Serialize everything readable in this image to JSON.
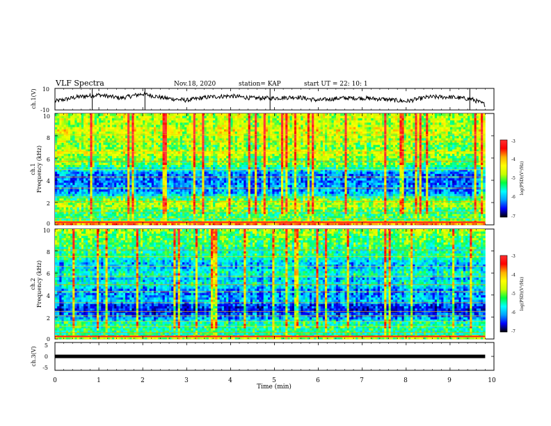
{
  "header": {
    "title": "VLF Spectra",
    "date": "Nov.18, 2020",
    "station": "station= KAP",
    "start": "start  UT =   22: 10: 1"
  },
  "colorbar": {
    "label": "log(PSD)(V²/Hz)",
    "ticks": [
      "-3",
      "-4",
      "-5",
      "-6",
      "-7"
    ],
    "colors": [
      "#ff3030",
      "#ff0000",
      "#ffb000",
      "#ffff00",
      "#c8ff00",
      "#00ff40",
      "#00ffff",
      "#00a0ff",
      "#0000ff",
      "#000000"
    ]
  },
  "chart_data": [
    {
      "type": "line",
      "name": "ch.1(V)",
      "ylabel": "ch.1(V)",
      "ylim": [
        -10,
        10
      ],
      "y_ticks": [
        "10",
        "-10"
      ],
      "x": [
        0,
        0.5,
        1,
        1.5,
        2,
        2.5,
        3,
        3.5,
        4,
        4.5,
        5,
        5.5,
        6,
        6.5,
        7,
        7.5,
        8,
        8.5,
        9,
        9.5,
        9.8
      ],
      "y": [
        -2,
        2,
        4,
        1,
        5,
        1,
        -1,
        2,
        3,
        1,
        1,
        2,
        -1,
        1,
        1,
        0,
        -2,
        2,
        2,
        0,
        -5
      ]
    },
    {
      "type": "heatmap",
      "name": "ch.1",
      "ylabel": "ch.1",
      "ylabel2": "Frequency (kHz)",
      "ylim": [
        0,
        10
      ],
      "y_ticks": [
        "0",
        "2",
        "4",
        "6",
        "8",
        "10"
      ],
      "colorbar_range": [
        -7,
        -3
      ],
      "band_profile_khz": [
        0,
        0.5,
        1,
        1.5,
        2,
        2.5,
        3,
        3.5,
        4,
        4.5,
        5,
        5.5,
        6,
        6.5,
        7,
        7.5,
        8,
        8.5,
        9,
        9.5,
        10
      ],
      "band_profile_logpsd": [
        -3.5,
        -5.0,
        -5.0,
        -4.8,
        -4.5,
        -5.2,
        -5.8,
        -5.8,
        -5.9,
        -5.9,
        -5.4,
        -4.8,
        -4.8,
        -4.4,
        -4.8,
        -4.6,
        -4.6,
        -4.3,
        -4.6,
        -4.5,
        -4.5
      ]
    },
    {
      "type": "heatmap",
      "name": "ch.2",
      "ylabel": "ch.2",
      "ylabel2": "Frequency (kHz)",
      "ylim": [
        0,
        10
      ],
      "y_ticks": [
        "0",
        "2",
        "4",
        "6",
        "8",
        "10"
      ],
      "colorbar_range": [
        -7,
        -3
      ],
      "band_profile_khz": [
        0,
        0.5,
        1,
        1.5,
        2,
        2.5,
        3,
        3.5,
        4,
        4.5,
        5,
        5.5,
        6,
        6.5,
        7,
        7.5,
        8,
        8.5,
        9,
        9.5,
        10
      ],
      "band_profile_logpsd": [
        -4.5,
        -5.2,
        -5.1,
        -5.2,
        -5.8,
        -6.2,
        -6.2,
        -5.6,
        -5.8,
        -5.8,
        -5.3,
        -5.6,
        -5.2,
        -5.6,
        -5.6,
        -5.1,
        -5.2,
        -5.0,
        -4.9,
        -4.8,
        -4.6
      ]
    },
    {
      "type": "line",
      "name": "ch.3(V)",
      "ylabel": "ch.3(V)",
      "ylim": [
        -5,
        5
      ],
      "y_ticks": [
        "5",
        "0",
        "-5"
      ],
      "x": [
        0,
        9.8
      ],
      "y": [
        0,
        0
      ]
    }
  ],
  "x_axis": {
    "xlabel": "Time (min)",
    "xlim": [
      0,
      10
    ],
    "ticks": [
      "0",
      "1",
      "2",
      "3",
      "4",
      "5",
      "6",
      "7",
      "8",
      "9",
      "10"
    ]
  }
}
